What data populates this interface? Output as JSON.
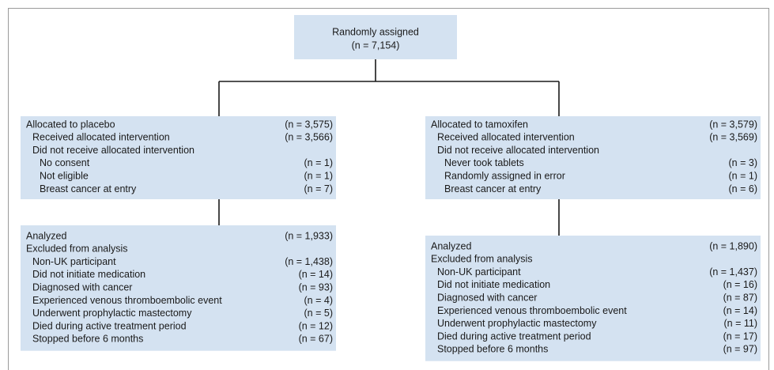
{
  "top": {
    "label": "Randomly assigned",
    "n": "(n = 7,154)"
  },
  "arms": [
    {
      "allocation": {
        "label": "Allocated to placebo",
        "n": "(n = 3,575)"
      },
      "received": {
        "label": "Received allocated intervention",
        "n": "(n = 3,566)"
      },
      "not_received": {
        "label": "Did not receive allocated intervention",
        "reasons": [
          {
            "label": "No consent",
            "n": "(n = 1)"
          },
          {
            "label": "Not eligible",
            "n": "(n = 1)"
          },
          {
            "label": "Breast cancer at entry",
            "n": "(n = 7)"
          }
        ]
      },
      "analyzed": {
        "label": "Analyzed",
        "n": "(n = 1,933)"
      },
      "excluded": {
        "label": "Excluded from analysis",
        "reasons": [
          {
            "label": "Non-UK participant",
            "n": "(n = 1,438)"
          },
          {
            "label": "Did not initiate medication",
            "n": "(n = 14)"
          },
          {
            "label": "Diagnosed with cancer",
            "n": "(n = 93)"
          },
          {
            "label": "Experienced venous thromboembolic event",
            "n": "(n = 4)"
          },
          {
            "label": "Underwent prophylactic mastectomy",
            "n": "(n = 5)"
          },
          {
            "label": "Died during active treatment period",
            "n": "(n = 12)"
          },
          {
            "label": "Stopped before 6 months",
            "n": "(n = 67)"
          }
        ]
      }
    },
    {
      "allocation": {
        "label": "Allocated to tamoxifen",
        "n": "(n = 3,579)"
      },
      "received": {
        "label": "Received allocated intervention",
        "n": "(n = 3,569)"
      },
      "not_received": {
        "label": "Did not receive allocated intervention",
        "reasons": [
          {
            "label": "Never took tablets",
            "n": "(n = 3)"
          },
          {
            "label": "Randomly assigned in error",
            "n": "(n = 1)"
          },
          {
            "label": "Breast cancer at entry",
            "n": "(n = 6)"
          }
        ]
      },
      "analyzed": {
        "label": "Analyzed",
        "n": "(n = 1,890)"
      },
      "excluded": {
        "label": "Excluded from analysis",
        "reasons": [
          {
            "label": "Non-UK participant",
            "n": "(n = 1,437)"
          },
          {
            "label": "Did not initiate medication",
            "n": "(n = 16)"
          },
          {
            "label": "Diagnosed with cancer",
            "n": "(n = 87)"
          },
          {
            "label": "Experienced venous thromboembolic event",
            "n": "(n = 14)"
          },
          {
            "label": "Underwent prophylactic mastectomy",
            "n": "(n = 11)"
          },
          {
            "label": "Died during active treatment period",
            "n": "(n = 17)"
          },
          {
            "label": "Stopped before 6 months",
            "n": "(n = 97)"
          }
        ]
      }
    }
  ]
}
